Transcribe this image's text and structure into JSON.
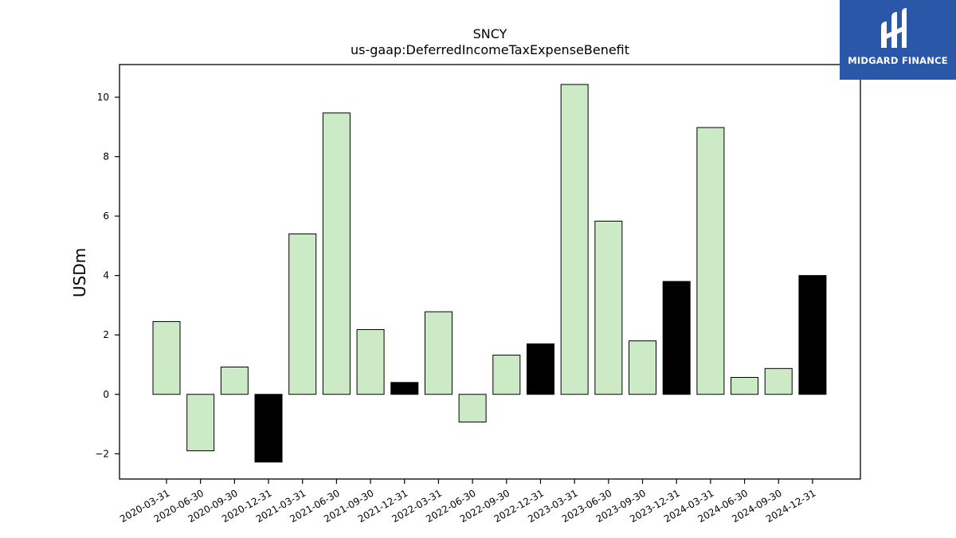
{
  "brand": {
    "name": "MIDGARD FINANCE",
    "box_color": "#2b57a8"
  },
  "chart_data": {
    "type": "bar",
    "title": "SNCY",
    "subtitle": "us-gaap:DeferredIncomeTaxExpenseBenefit",
    "xlabel": "",
    "ylabel": "USDm",
    "ylim": [
      -2.85,
      11.1
    ],
    "yticks": [
      -2,
      0,
      2,
      4,
      6,
      8,
      10
    ],
    "grid": false,
    "categories": [
      "2020-03-31",
      "2020-06-30",
      "2020-09-30",
      "2020-12-31",
      "2021-03-31",
      "2021-06-30",
      "2021-09-30",
      "2021-12-31",
      "2022-03-31",
      "2022-06-30",
      "2022-09-30",
      "2022-12-31",
      "2023-03-31",
      "2023-06-30",
      "2023-09-30",
      "2023-12-31",
      "2024-03-31",
      "2024-06-30",
      "2024-09-30",
      "2024-12-31"
    ],
    "values": [
      2.45,
      -1.9,
      0.92,
      -2.28,
      5.4,
      9.47,
      2.18,
      0.4,
      2.78,
      -0.93,
      1.32,
      1.7,
      10.43,
      5.83,
      1.8,
      3.8,
      8.98,
      0.57,
      0.87,
      4.0
    ],
    "highlight": [
      false,
      false,
      false,
      true,
      false,
      false,
      false,
      true,
      false,
      false,
      false,
      true,
      false,
      false,
      false,
      true,
      false,
      false,
      false,
      true
    ],
    "colors": {
      "normal": "#cdeac7",
      "highlight": "#000000",
      "edge": "#000000"
    }
  }
}
